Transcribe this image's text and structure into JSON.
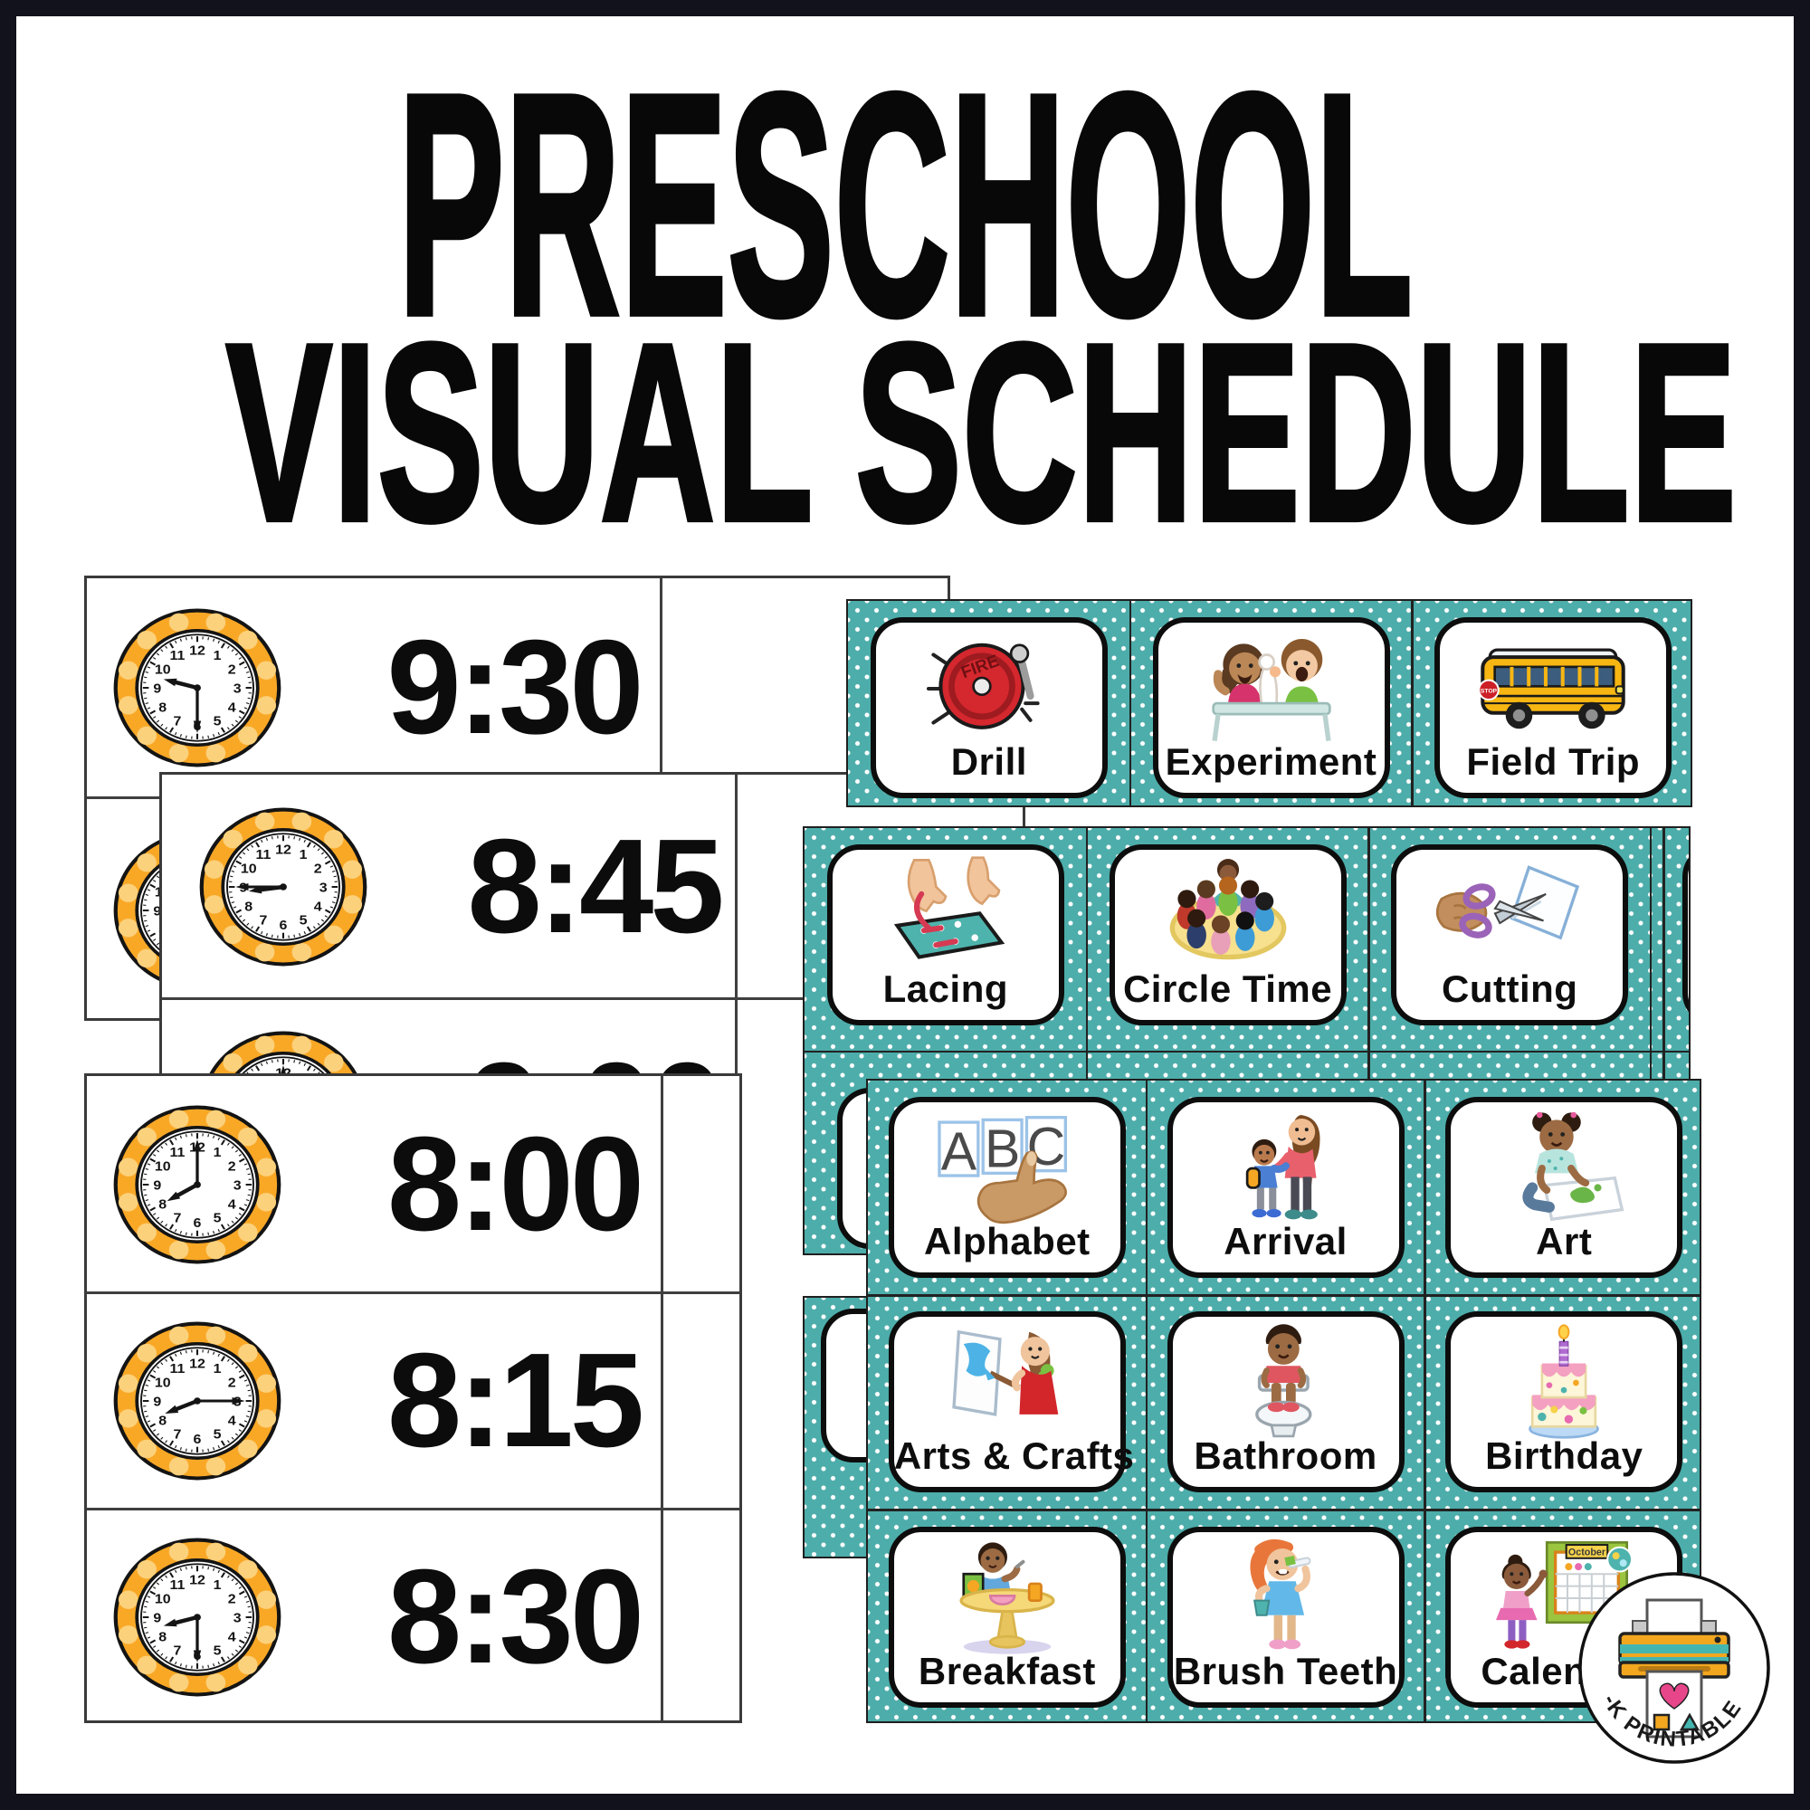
{
  "poster": {
    "title_line1": "PRESCHOOL",
    "title_line2": "VISUAL SCHEDULE",
    "frame_color": "#12121d",
    "background": "#ffffff"
  },
  "palette": {
    "teal_sheet": "#4dadaa",
    "clock_ring_orange": "#f9a826",
    "clock_ring_dots": "#fcd17c",
    "card_background": "#ffffff",
    "ink": "#0d0d0d"
  },
  "clock_schedule_sheets": [
    {
      "name": "clock-sheet-back",
      "rows": [
        {
          "time": "9:30"
        },
        {
          "time": ""
        }
      ]
    },
    {
      "name": "clock-sheet-middle",
      "rows": [
        {
          "time": "8:45"
        },
        {
          "time": "9:00"
        }
      ]
    },
    {
      "name": "clock-sheet-front",
      "rows": [
        {
          "time": "8:00"
        },
        {
          "time": "8:15"
        },
        {
          "time": "8:30"
        }
      ]
    }
  ],
  "activity_card_sheets": [
    {
      "name": "activity-sheet-top",
      "cards": [
        {
          "label": "Drill",
          "icon": "fire-alarm-bell-icon"
        },
        {
          "label": "Experiment",
          "icon": "science-experiment-icon"
        },
        {
          "label": "Field Trip",
          "icon": "school-bus-icon"
        }
      ]
    },
    {
      "name": "activity-sheet-middle",
      "cards": [
        {
          "label": "Lacing",
          "icon": "lacing-card-icon"
        },
        {
          "label": "Circle Time",
          "icon": "circle-time-icon"
        },
        {
          "label": "Cutting",
          "icon": "scissors-cutting-icon"
        }
      ]
    },
    {
      "name": "activity-sheet-front",
      "cards": [
        {
          "label": "Alphabet",
          "icon": "alphabet-abc-icon"
        },
        {
          "label": "Arrival",
          "icon": "arrival-parent-child-icon"
        },
        {
          "label": "Art",
          "icon": "art-finger-painting-icon"
        },
        {
          "label": "Arts & Crafts",
          "icon": "arts-crafts-easel-icon"
        },
        {
          "label": "Bathroom",
          "icon": "bathroom-toilet-icon"
        },
        {
          "label": "Birthday",
          "icon": "birthday-cake-icon"
        },
        {
          "label": "Breakfast",
          "icon": "breakfast-table-icon"
        },
        {
          "label": "Brush Teeth",
          "icon": "brush-teeth-icon"
        },
        {
          "label": "Calendar",
          "icon": "calendar-october-icon"
        }
      ]
    }
  ],
  "details": {
    "fire_bell_text": "FIRE",
    "bus_sign_text": "STOP",
    "calendar_month": "October"
  },
  "clock_face_numbers": [
    "12",
    "1",
    "2",
    "3",
    "4",
    "5",
    "6",
    "7",
    "8",
    "9",
    "10",
    "11"
  ],
  "logo_badge": {
    "text": "PRE-K PRINTABLE FUN",
    "icon": "printer-icon"
  }
}
